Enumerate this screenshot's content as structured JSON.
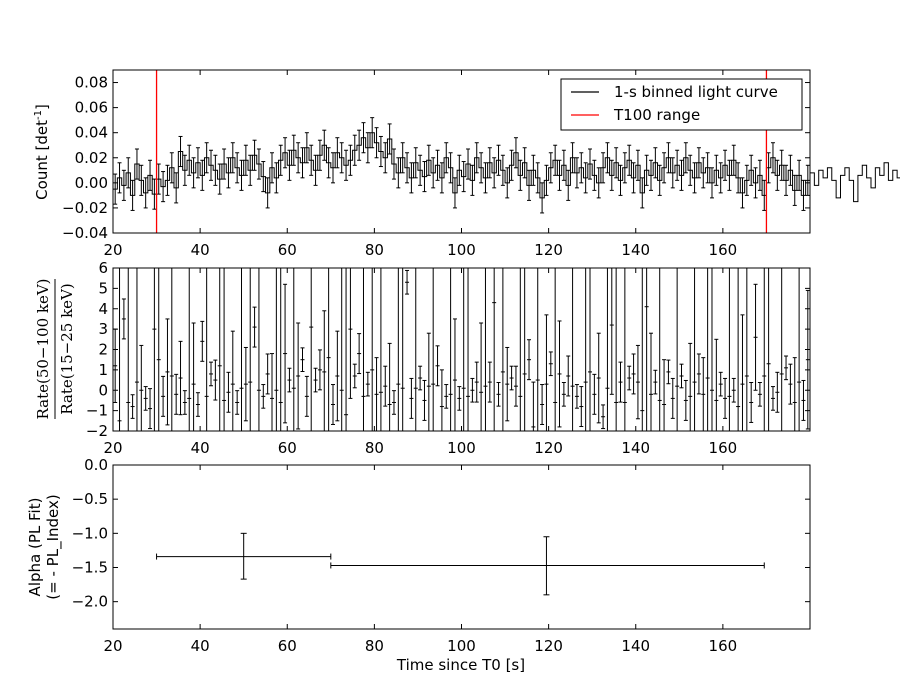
{
  "chart_data": [
    {
      "type": "line",
      "name": "panel-light-curve",
      "ylabel_text": "Count [det",
      "ylabel_sup": "-1",
      "ylabel_end": "]",
      "xlim": [
        20,
        180
      ],
      "ylim": [
        -0.04,
        0.09
      ],
      "xticks": [
        20,
        40,
        60,
        80,
        100,
        120,
        140,
        160
      ],
      "yticks": [
        -0.04,
        -0.02,
        0.0,
        0.02,
        0.04,
        0.06,
        0.08
      ],
      "ytick_labels": [
        "−0.04",
        "−0.02",
        "0.00",
        "0.02",
        "0.04",
        "0.06",
        "0.08"
      ],
      "legend": {
        "position": "top-right",
        "entries": [
          {
            "label": "1-s binned light curve",
            "color": "#000000"
          },
          {
            "label": "T100 range",
            "color": "#ff0000"
          }
        ]
      },
      "t100_range": [
        30,
        170
      ],
      "series": [
        {
          "x_start": 20.5,
          "x_step": 1,
          "values": [
            -0.005,
            0.004,
            -0.002,
            0.008,
            -0.01,
            0.015,
            0.002,
            -0.008,
            0.006,
            -0.009,
            0.003,
            -0.003,
            0.002,
            0.012,
            -0.004,
            0.025,
            0.01,
            0.018,
            0.008,
            0.016,
            0.006,
            0.02,
            0.014,
            0.01,
            0.003,
            0.015,
            0.008,
            0.02,
            0.012,
            0.006,
            0.018,
            0.01,
            0.022,
            0.015,
            0.005,
            -0.008,
            0.012,
            0.004,
            0.018,
            0.024,
            0.014,
            0.026,
            0.02,
            0.016,
            0.028,
            0.018,
            0.01,
            0.022,
            0.03,
            0.016,
            0.012,
            0.024,
            0.02,
            0.014,
            0.018,
            0.026,
            0.03,
            0.036,
            0.028,
            0.04,
            0.032,
            0.025,
            0.02,
            0.035,
            0.015,
            0.008,
            0.02,
            0.012,
            0.004,
            0.016,
            0.01,
            0.005,
            0.018,
            0.008,
            0.014,
            0.004,
            0.02,
            0.012,
            -0.008,
            0.01,
            0.005,
            0.015,
            0.002,
            0.02,
            0.012,
            0.004,
            0.016,
            0.008,
            0.018,
            0.01,
            0.0,
            0.014,
            0.024,
            0.006,
            0.016,
            -0.002,
            0.01,
            0.004,
            -0.012,
            0.002,
            0.012,
            0.018,
            0.006,
            0.014,
            -0.002,
            0.02,
            0.008,
            0.012,
            0.004,
            0.015,
            0.006,
            0.0,
            0.012,
            0.02,
            0.006,
            0.016,
            0.002,
            0.012,
            0.018,
            0.004,
            0.014,
            -0.008,
            0.01,
            0.006,
            0.016,
            0.002,
            0.012,
            0.02,
            0.008,
            0.014,
            0.006,
            0.02,
            0.01,
            0.004,
            0.016,
            0.008,
            0.012,
            0.0,
            0.01,
            0.004,
            0.014,
            0.006,
            0.018,
            0.004,
            -0.008,
            0.002,
            0.01,
            0.0,
            0.006,
            -0.01,
            0.012,
            0.02,
            0.006,
            0.014,
            0.002,
            0.01,
            -0.006,
            0.006,
            -0.01,
            0.002,
            0.008,
            -0.002,
            0.01,
            0.004,
            0.012,
            0.002,
            -0.012,
            0.006,
            0.012,
            0.002,
            -0.015,
            0.006,
            0.014,
            0.004,
            -0.004,
            0.012,
            0.006,
            0.016,
            0.002,
            0.01,
            0.004,
            0.0
          ],
          "err": 0.012
        }
      ]
    },
    {
      "type": "scatter",
      "name": "panel-hardness-ratio",
      "ylabel_math": "Rate(50−100 keV)",
      "ylabel_math_den": "Rate(15−25 keV)",
      "xlim": [
        20,
        180
      ],
      "ylim": [
        -2,
        6
      ],
      "xticks": [
        20,
        40,
        60,
        80,
        100,
        120,
        140,
        160
      ],
      "yticks": [
        -2,
        -1,
        0,
        1,
        2,
        3,
        4,
        5,
        6
      ],
      "ytick_labels": [
        "−2",
        "−1",
        "0",
        "1",
        "2",
        "3",
        "4",
        "5",
        "6"
      ],
      "series": [
        {
          "x_start": 20.5,
          "x_step": 1,
          "values": [
            1.2,
            -1.5,
            3.5,
            -0.6,
            -0.8,
            0.4,
            0.0,
            -0.4,
            -0.9,
            3.0,
            1.5,
            -0.3,
            0.9,
            0.7,
            -0.2,
            0.6,
            -0.6,
            -0.4,
            0.3,
            -0.7,
            2.4,
            -0.3,
            0.8,
            0.5,
            1.2,
            -0.5,
            -0.1,
            0.3,
            -0.6,
            0.1,
            0.3,
            0.4,
            3.1,
            0.0,
            -0.3,
            0.8,
            -0.4,
            0.0,
            -0.6,
            1.8,
            0.5,
            0.1,
            0.7,
            1.5,
            -0.3,
            3.1,
            0.5,
            1.0,
            0.9,
            1.6,
            -0.7,
            0.7,
            0.0,
            -1.2,
            3.0,
            0.7,
            1.8,
            -0.3,
            0.3,
            1.0,
            -0.2,
            -0.1,
            0.2,
            -0.7,
            -0.6,
            0.3,
            0.1,
            5.3,
            -0.4,
            0.1,
            0.6,
            -0.5,
            0.2,
            0.3,
            1.2,
            -0.8,
            -0.3,
            -0.2,
            0.5,
            -0.4,
            0.1,
            -0.3,
            0.0,
            0.4,
            -0.1,
            0.2,
            0.4,
            4.3,
            -0.2,
            0.9,
            0.3,
            0.6,
            0.2,
            -0.3,
            0.8,
            1.5,
            -1.8,
            0.5,
            -0.7,
            0.3,
            1.3,
            -0.6,
            0.8,
            -0.2,
            0.7,
            0.2,
            -0.3,
            -0.8,
            0.4,
            0.9,
            -0.2,
            0.6,
            -1.3,
            0.1,
            3.2,
            -0.6,
            0.4,
            -0.6,
            0.6,
            0.8,
            0.4,
            -1.0,
            4.1,
            -0.2,
            0.4,
            -0.5,
            -0.7,
            0.9,
            -0.4,
            0.2,
            0.7,
            -0.5,
            -0.3,
            0.4,
            0.8,
            -0.2,
            0.6,
            0.0,
            -0.5,
            0.3,
            -0.4,
            -0.3,
            0.0,
            -0.8,
            0.3,
            0.7,
            -0.6,
            2.6,
            -0.2,
            0.7,
            1.3,
            -0.4,
            -0.1,
            0.8,
            1.1,
            0.3,
            -0.6,
            0.4,
            -0.5,
            1.5,
            -0.7,
            0.2,
            0.8,
            -0.5,
            0.3,
            -0.6,
            0.6,
            1.0,
            -0.4,
            0.2,
            -0.8,
            0.5,
            -0.3,
            -0.7,
            0.9,
            -0.3,
            -0.9,
            0.7,
            1.8,
            1.2,
            -0.8,
            0.4,
            -0.4,
            0.1
          ],
          "err_small": 0.18
        }
      ]
    },
    {
      "type": "scatter",
      "name": "panel-alpha",
      "xlabel": "Time since T0 [s]",
      "ylabel_line1": "Alpha (PL Fit)",
      "ylabel_line2": "(= - PL_Index)",
      "xlim": [
        20,
        180
      ],
      "ylim": [
        -2.4,
        0.0
      ],
      "xticks": [
        20,
        40,
        60,
        80,
        100,
        120,
        140,
        160
      ],
      "yticks": [
        -2.0,
        -1.5,
        -1.0,
        -0.5,
        0.0
      ],
      "ytick_labels": [
        "−2.0",
        "−1.5",
        "−1.0",
        "−0.5",
        "0.0"
      ],
      "series": [
        {
          "points": [
            {
              "x": 50,
              "x_lo": 30,
              "x_hi": 70,
              "y": -1.34,
              "y_lo": -1.67,
              "y_hi": -1.0
            },
            {
              "x": 119.5,
              "x_lo": 70,
              "x_hi": 169.5,
              "y": -1.47,
              "y_lo": -1.9,
              "y_hi": -1.05
            }
          ]
        }
      ]
    }
  ]
}
